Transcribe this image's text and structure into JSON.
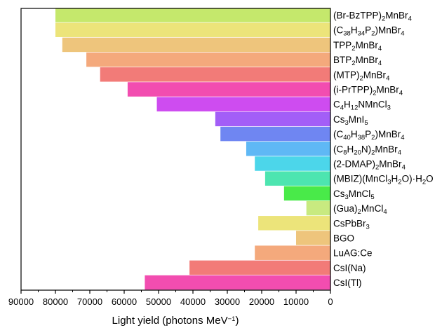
{
  "chart_data": {
    "type": "bar",
    "orientation": "horizontal",
    "x_reversed": true,
    "xlabel": "Light yield (photons MeV−1)",
    "xlim": [
      0,
      90000
    ],
    "xticks": [
      "90000",
      "80000",
      "70000",
      "60000",
      "50000",
      "40000",
      "30000",
      "20000",
      "10000",
      "0"
    ],
    "grid": false,
    "categories": [
      {
        "name": "(Br-BzTPP)2MnBr4",
        "value": 80000,
        "color": "#c5e86c"
      },
      {
        "name": "(C38H34P2)MnBr4",
        "value": 80000,
        "color": "#ece47a"
      },
      {
        "name": "TPP2MnBr4",
        "value": 78000,
        "color": "#eec57c"
      },
      {
        "name": "BTP2MnBr4",
        "value": 71000,
        "color": "#f4a97c"
      },
      {
        "name": "(MTP)2MnBr4",
        "value": 67000,
        "color": "#f27b78"
      },
      {
        "name": "(i-PrTPP)2MnBr4",
        "value": 59000,
        "color": "#f24db0"
      },
      {
        "name": "C4H12NMnCl3",
        "value": 50500,
        "color": "#ce4cf0"
      },
      {
        "name": "Cs3MnI5",
        "value": 33500,
        "color": "#a35ef7"
      },
      {
        "name": "(C40H38P2)MnBr4",
        "value": 32000,
        "color": "#6f86f2"
      },
      {
        "name": "(C8H20N)2MnBr4",
        "value": 24500,
        "color": "#5fb8f5"
      },
      {
        "name": "(2-DMAP)2MnBr4",
        "value": 22000,
        "color": "#4cd6ea"
      },
      {
        "name": "(MBIZ)(MnCl3H2O)·H2O",
        "value": 19000,
        "color": "#4de5b0"
      },
      {
        "name": "Cs3MnCl5",
        "value": 13500,
        "color": "#49ea49"
      },
      {
        "name": "(Gua)2MnCl4",
        "value": 7000,
        "color": "#c8ea80"
      },
      {
        "name": "CsPbBr3",
        "value": 21000,
        "color": "#ece47a"
      },
      {
        "name": "BGO",
        "value": 10000,
        "color": "#eec57c"
      },
      {
        "name": "LuAG:Ce",
        "value": 22000,
        "color": "#f4a97c"
      },
      {
        "name": "CsI(Na)",
        "value": 41000,
        "color": "#f27b78"
      },
      {
        "name": "CsI(Tl)",
        "value": 54000,
        "color": "#f24db0"
      }
    ],
    "label_parts": [
      [
        [
          "(Br-BzTPP)",
          0
        ],
        [
          "2",
          1
        ],
        [
          "MnBr",
          0
        ],
        [
          "4",
          1
        ]
      ],
      [
        [
          "(C",
          0
        ],
        [
          "38",
          1
        ],
        [
          "H",
          0
        ],
        [
          "34",
          1
        ],
        [
          "P",
          0
        ],
        [
          "2",
          1
        ],
        [
          ")MnBr",
          0
        ],
        [
          "4",
          1
        ]
      ],
      [
        [
          "TPP",
          0
        ],
        [
          "2",
          1
        ],
        [
          "MnBr",
          0
        ],
        [
          "4",
          1
        ]
      ],
      [
        [
          "BTP",
          0
        ],
        [
          "2",
          1
        ],
        [
          "MnBr",
          0
        ],
        [
          "4",
          1
        ]
      ],
      [
        [
          "(MTP)",
          0
        ],
        [
          "2",
          1
        ],
        [
          "MnBr",
          0
        ],
        [
          "4",
          1
        ]
      ],
      [
        [
          "(i-PrTPP)",
          0
        ],
        [
          "2",
          1
        ],
        [
          "MnBr",
          0
        ],
        [
          "4",
          1
        ]
      ],
      [
        [
          "C",
          0
        ],
        [
          "4",
          1
        ],
        [
          "H",
          0
        ],
        [
          "12",
          1
        ],
        [
          "NMnCl",
          0
        ],
        [
          "3",
          1
        ]
      ],
      [
        [
          "Cs",
          0
        ],
        [
          "3",
          1
        ],
        [
          "MnI",
          0
        ],
        [
          "5",
          1
        ]
      ],
      [
        [
          "(C",
          0
        ],
        [
          "40",
          1
        ],
        [
          "H",
          0
        ],
        [
          "38",
          1
        ],
        [
          "P",
          0
        ],
        [
          "2",
          1
        ],
        [
          ")MnBr",
          0
        ],
        [
          "4",
          1
        ]
      ],
      [
        [
          "(C",
          0
        ],
        [
          "8",
          1
        ],
        [
          "H",
          0
        ],
        [
          "20",
          1
        ],
        [
          "N)",
          0
        ],
        [
          "2",
          1
        ],
        [
          "MnBr",
          0
        ],
        [
          "4",
          1
        ]
      ],
      [
        [
          "(2-DMAP)",
          0
        ],
        [
          "2",
          1
        ],
        [
          "MnBr",
          0
        ],
        [
          "4",
          1
        ]
      ],
      [
        [
          "(MBIZ)(MnCl",
          0
        ],
        [
          "3",
          1
        ],
        [
          "H",
          0
        ],
        [
          "2",
          1
        ],
        [
          "O)·H",
          0
        ],
        [
          "2",
          1
        ],
        [
          "O",
          0
        ]
      ],
      [
        [
          "Cs",
          0
        ],
        [
          "3",
          1
        ],
        [
          "MnCl",
          0
        ],
        [
          "5",
          1
        ]
      ],
      [
        [
          "(Gua)",
          0
        ],
        [
          "2",
          1
        ],
        [
          "MnCl",
          0
        ],
        [
          "4",
          1
        ]
      ],
      [
        [
          "CsPbBr",
          0
        ],
        [
          "3",
          1
        ]
      ],
      [
        [
          "BGO",
          0
        ]
      ],
      [
        [
          "LuAG:Ce",
          0
        ]
      ],
      [
        [
          "CsI(Na)",
          0
        ]
      ],
      [
        [
          "CsI(Tl)",
          0
        ]
      ]
    ],
    "xlabel_parts": [
      [
        "Light yield (photons MeV",
        0
      ],
      [
        "−1",
        2
      ],
      [
        ")",
        0
      ]
    ]
  }
}
